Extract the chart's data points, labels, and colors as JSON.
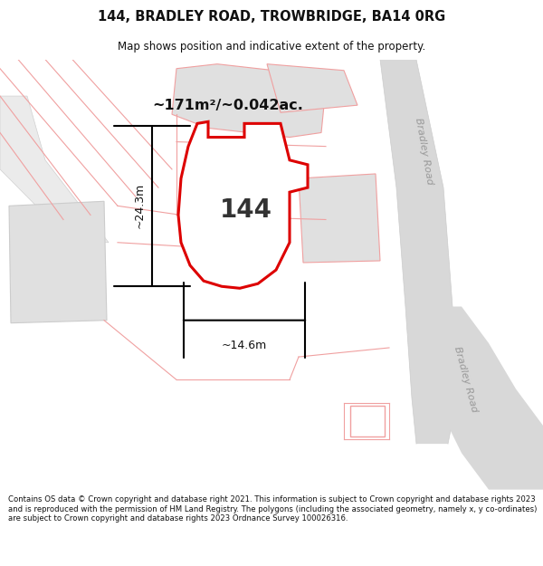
{
  "title": "144, BRADLEY ROAD, TROWBRIDGE, BA14 0RG",
  "subtitle": "Map shows position and indicative extent of the property.",
  "footer": "Contains OS data © Crown copyright and database right 2021. This information is subject to Crown copyright and database rights 2023 and is reproduced with the permission of HM Land Registry. The polygons (including the associated geometry, namely x, y co-ordinates) are subject to Crown copyright and database rights 2023 Ordnance Survey 100026316.",
  "area_label": "~171m²/~0.042ac.",
  "number_label": "144",
  "width_label": "~14.6m",
  "height_label": "~24.3m",
  "road_label_1": "Bradley Road",
  "road_label_2": "Bradley Road",
  "bg_color": "#ffffff",
  "highlight_color": "#dd0000",
  "nearby_poly_color": "#f0a0a0",
  "gray_fill": "#e0e0e0",
  "road_fill": "#d8d8d8",
  "map_bg": "#f5f5f5"
}
